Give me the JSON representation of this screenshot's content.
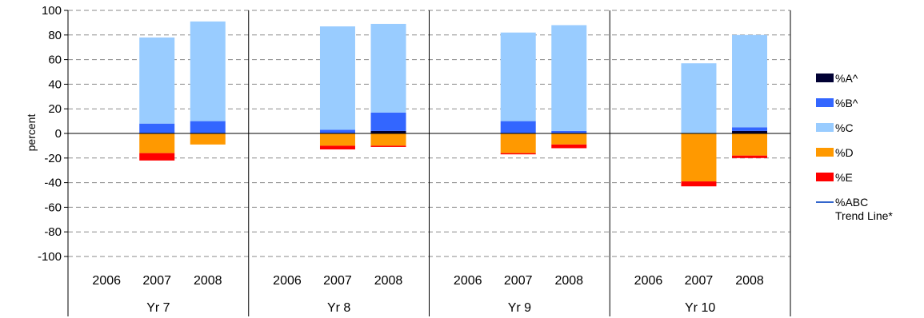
{
  "chart_data": {
    "type": "bar",
    "stacked": true,
    "diverging": true,
    "ylabel": "percent",
    "ylim": [
      -100,
      100
    ],
    "yticks": [
      100,
      80,
      60,
      40,
      20,
      0,
      -20,
      -40,
      -60,
      -80,
      -100
    ],
    "grid": true,
    "legend_position": "right",
    "groups": [
      "Yr 7",
      "Yr 8",
      "Yr 9",
      "Yr 10"
    ],
    "years": [
      "2006",
      "2007",
      "2008"
    ],
    "series": [
      {
        "name": "%A^",
        "color": "#000033",
        "sign": "positive",
        "values": [
          [
            null,
            0,
            0
          ],
          [
            null,
            0,
            2
          ],
          [
            null,
            0,
            0
          ],
          [
            null,
            0,
            2
          ]
        ]
      },
      {
        "name": "%B^",
        "color": "#3366FF",
        "sign": "positive",
        "values": [
          [
            null,
            8,
            10
          ],
          [
            null,
            3,
            15
          ],
          [
            null,
            10,
            2
          ],
          [
            null,
            0,
            3
          ]
        ]
      },
      {
        "name": "%C",
        "color": "#99CCFF",
        "sign": "positive",
        "values": [
          [
            null,
            70,
            81
          ],
          [
            null,
            84,
            72
          ],
          [
            null,
            72,
            86
          ],
          [
            null,
            57,
            75
          ]
        ]
      },
      {
        "name": "%D",
        "color": "#FF9900",
        "sign": "negative",
        "values": [
          [
            null,
            16,
            9
          ],
          [
            null,
            10,
            10
          ],
          [
            null,
            16,
            9
          ],
          [
            null,
            39,
            18
          ]
        ]
      },
      {
        "name": "%E",
        "color": "#FF0000",
        "sign": "negative",
        "values": [
          [
            null,
            6,
            0
          ],
          [
            null,
            3,
            1
          ],
          [
            null,
            1,
            3
          ],
          [
            null,
            4,
            2
          ]
        ]
      }
    ],
    "trend_line": {
      "name": "%ABC\nTrend Line*",
      "color": "#3366CC"
    }
  }
}
